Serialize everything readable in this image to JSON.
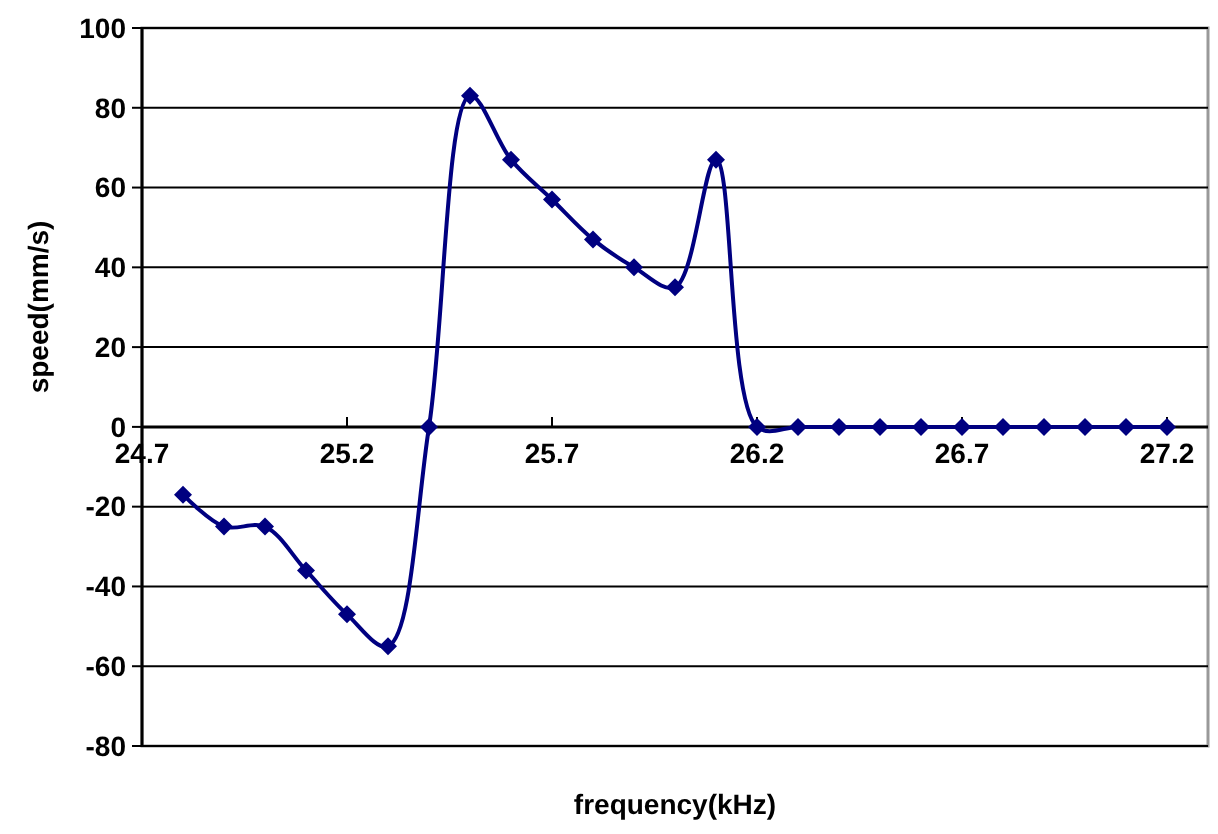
{
  "chart_data": {
    "type": "line",
    "xlabel": "frequency(kHz)",
    "ylabel": "speed(mm/s)",
    "x": [
      24.8,
      24.9,
      25.0,
      25.1,
      25.2,
      25.3,
      25.4,
      25.5,
      25.6,
      25.7,
      25.8,
      25.9,
      26.0,
      26.1,
      26.2,
      26.3,
      26.4,
      26.5,
      26.6,
      26.7,
      26.8,
      26.9,
      27.0,
      27.1,
      27.2
    ],
    "series": [
      {
        "color": "#000080",
        "values": [
          -17,
          -25,
          -25,
          -36,
          -47,
          -55,
          0,
          83,
          67,
          57,
          47,
          40,
          35,
          67,
          0,
          0,
          0,
          0,
          0,
          0,
          0,
          0,
          0,
          0,
          0
        ]
      }
    ],
    "xlim": [
      24.7,
      27.3
    ],
    "xticks": [
      24.7,
      25.2,
      25.7,
      26.2,
      26.7,
      27.2
    ],
    "ylim": [
      -80,
      100
    ],
    "yticks": [
      -80,
      -60,
      -40,
      -20,
      0,
      20,
      40,
      60,
      80,
      100
    ],
    "grid": "y",
    "marker": "diamond",
    "line_style": "solid"
  }
}
